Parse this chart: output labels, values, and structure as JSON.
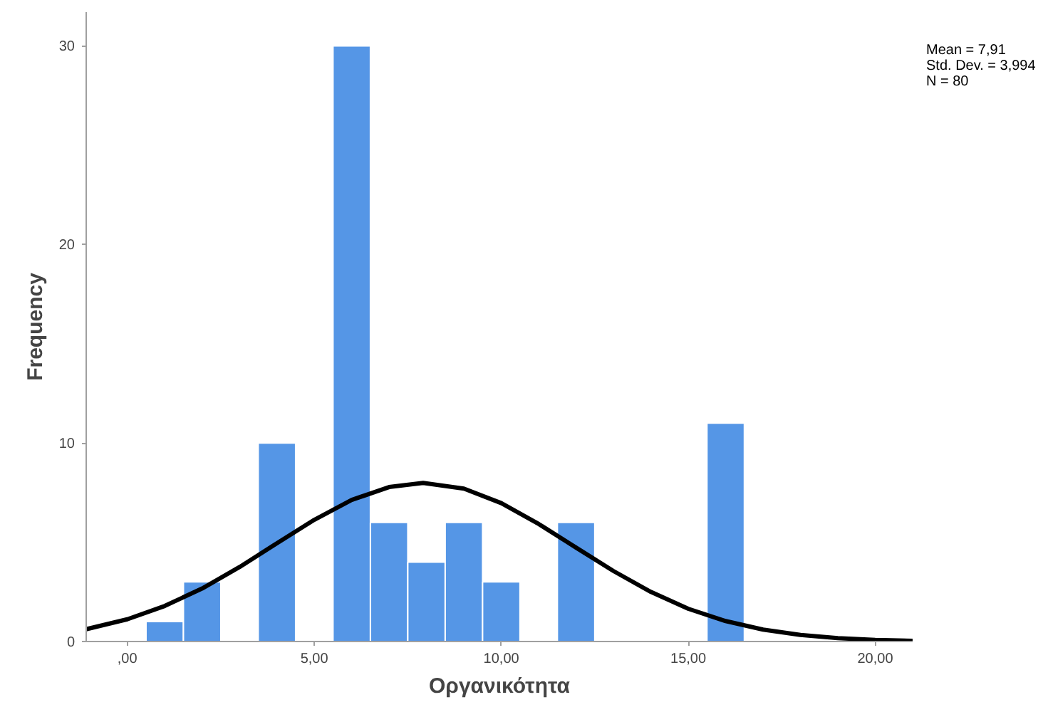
{
  "chart_data": {
    "type": "histogram",
    "xlabel": "Οργανικότητα",
    "ylabel": "Frequency",
    "annotations": [
      "Mean = 7,91",
      "Std. Dev. = 3,994",
      "N = 80"
    ],
    "series": [
      {
        "type": "histogram",
        "color": "#5596e6",
        "bins": [
          0.5,
          1.5,
          2.5,
          3.5,
          4.5,
          5.5,
          6.5,
          7.5,
          8.5,
          9.5,
          10.5,
          11.5,
          12.5,
          13.5,
          14.5,
          15.5,
          16.5
        ],
        "values": [
          1,
          3,
          0,
          10,
          0,
          30,
          6,
          4,
          6,
          3,
          0,
          6,
          0,
          0,
          0,
          11
        ]
      },
      {
        "type": "line",
        "color": "#000000",
        "x": [
          -1.1,
          0,
          1,
          2,
          3,
          4,
          5,
          6,
          7,
          7.91,
          9,
          10,
          11,
          12,
          13,
          14,
          15,
          16,
          17,
          18,
          19,
          20,
          21
        ],
        "values": [
          0.62,
          1.12,
          1.79,
          2.67,
          3.75,
          4.95,
          6.13,
          7.13,
          7.78,
          7.99,
          7.7,
          6.97,
          5.92,
          4.73,
          3.55,
          2.5,
          1.65,
          1.03,
          0.6,
          0.33,
          0.17,
          0.08,
          0.04
        ]
      }
    ],
    "xlim": [
      -1.1,
      21.0
    ],
    "ylim": [
      0,
      31.7
    ],
    "xticks": [
      {
        "value": 0,
        "label": ",00"
      },
      {
        "value": 5,
        "label": "5,00"
      },
      {
        "value": 10,
        "label": "10,00"
      },
      {
        "value": 15,
        "label": "15,00"
      },
      {
        "value": 20,
        "label": "20,00"
      }
    ],
    "yticks": [
      0,
      10,
      20,
      30
    ],
    "grid": false
  }
}
